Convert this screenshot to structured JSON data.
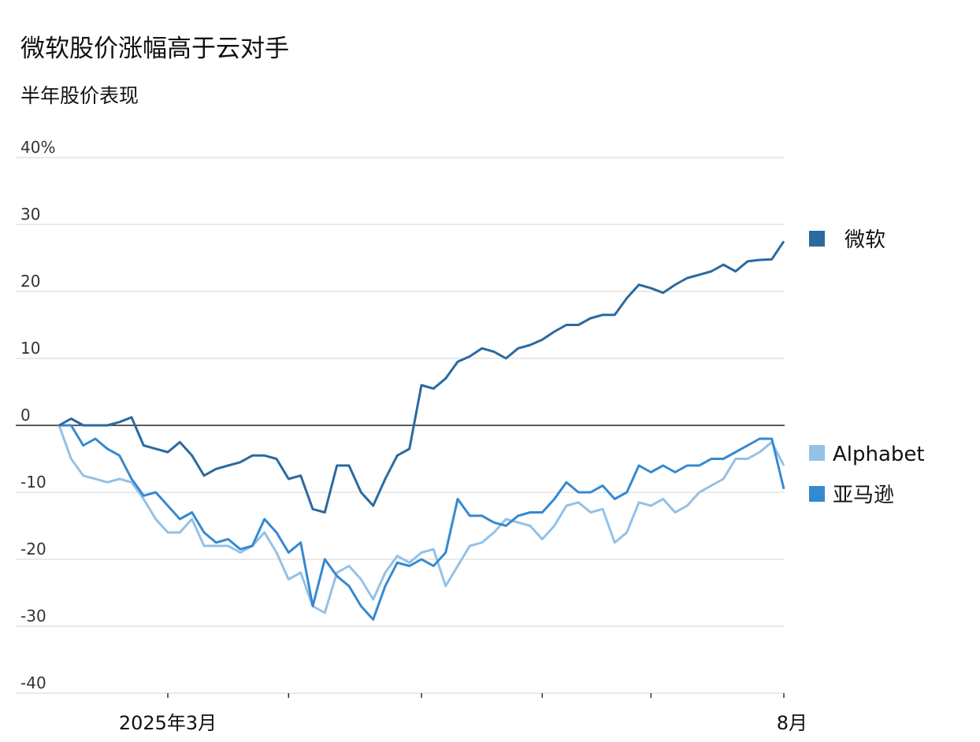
{
  "chart_data": {
    "type": "line",
    "title": "微软股价涨幅高于云对手",
    "subtitle": "半年股价表现",
    "categories": [
      null,
      null,
      null,
      null,
      null,
      null,
      null,
      null,
      null,
      "2025年3月",
      null,
      null,
      null,
      null,
      null,
      null,
      null,
      null,
      null,
      null,
      null,
      null,
      null,
      null,
      null,
      null,
      null,
      null,
      null,
      null,
      null,
      null,
      null,
      null,
      null,
      null,
      null,
      null,
      null,
      null,
      null,
      null,
      null,
      null,
      null,
      null,
      null,
      null,
      null,
      null,
      null,
      null,
      null,
      null,
      null,
      null,
      null,
      null,
      null,
      null,
      "8月"
    ],
    "xticks": [
      9,
      19,
      30,
      40,
      49,
      60
    ],
    "ylim": [
      -40,
      40
    ],
    "yticks": [
      -40,
      -30,
      -20,
      -10,
      0,
      10,
      20,
      30,
      {
        "value": 40,
        "label": "40%"
      }
    ],
    "grid": true,
    "series": [
      {
        "name": "微软",
        "color": "#2a6aa0",
        "values": [
          0,
          1,
          0,
          0,
          0,
          0.5,
          1.2,
          -3,
          -3.5,
          -4,
          -2.5,
          -4.5,
          -7.5,
          -6.5,
          -6,
          -5.5,
          -4.5,
          -4.5,
          -5,
          -8,
          -7.5,
          -12.5,
          -13,
          -6,
          -6,
          -10,
          -12,
          -8,
          -4.5,
          -3.5,
          6,
          5.5,
          7,
          9.5,
          10.3,
          11.5,
          11,
          10,
          11.5,
          12,
          12.8,
          14,
          15,
          15,
          16,
          16.5,
          16.5,
          19,
          21,
          20.5,
          19.8,
          21,
          22,
          22.5,
          23,
          24,
          23,
          24.5,
          24.7,
          24.8,
          27.5
        ]
      },
      {
        "name": "Alphabet",
        "color": "#93c1e7",
        "values": [
          0,
          -5,
          -7.5,
          -8,
          -8.5,
          -8,
          -8.5,
          -11,
          -14,
          -16,
          -16,
          -14,
          -18,
          -18,
          -18,
          -19,
          -18,
          -16,
          -19,
          -23,
          -22,
          -27,
          -28,
          -22,
          -21,
          -23,
          -26,
          -22,
          -19.5,
          -20.5,
          -19,
          -18.5,
          -24,
          -21,
          -18,
          -17.5,
          -16,
          -14,
          -14.5,
          -15,
          -17,
          -15,
          -12,
          -11.5,
          -13,
          -12.5,
          -17.5,
          -16,
          -11.5,
          -12,
          -11,
          -13,
          -12,
          -10,
          -9,
          -8,
          -5,
          -5,
          -4,
          -2.5,
          -6
        ]
      },
      {
        "name": "亚马逊",
        "color": "#3589d1",
        "values": [
          0,
          0,
          -3,
          -2,
          -3.5,
          -4.5,
          -8,
          -10.5,
          -10,
          -12,
          -14,
          -13,
          -16,
          -17.5,
          -17,
          -18.5,
          -18,
          -14,
          -16,
          -19,
          -17.5,
          -27,
          -20,
          -22.5,
          -24,
          -27,
          -29,
          -24,
          -20.5,
          -21,
          -20,
          -21,
          -19,
          -11,
          -13.5,
          -13.5,
          -14.5,
          -15,
          -13.5,
          -13,
          -13,
          -11,
          -8.5,
          -10,
          -10,
          -9,
          -11,
          -10,
          -6,
          -7,
          -6,
          -7,
          -6,
          -6,
          -5,
          -5,
          -4,
          -3,
          -2,
          -2,
          -9.5
        ]
      }
    ]
  }
}
